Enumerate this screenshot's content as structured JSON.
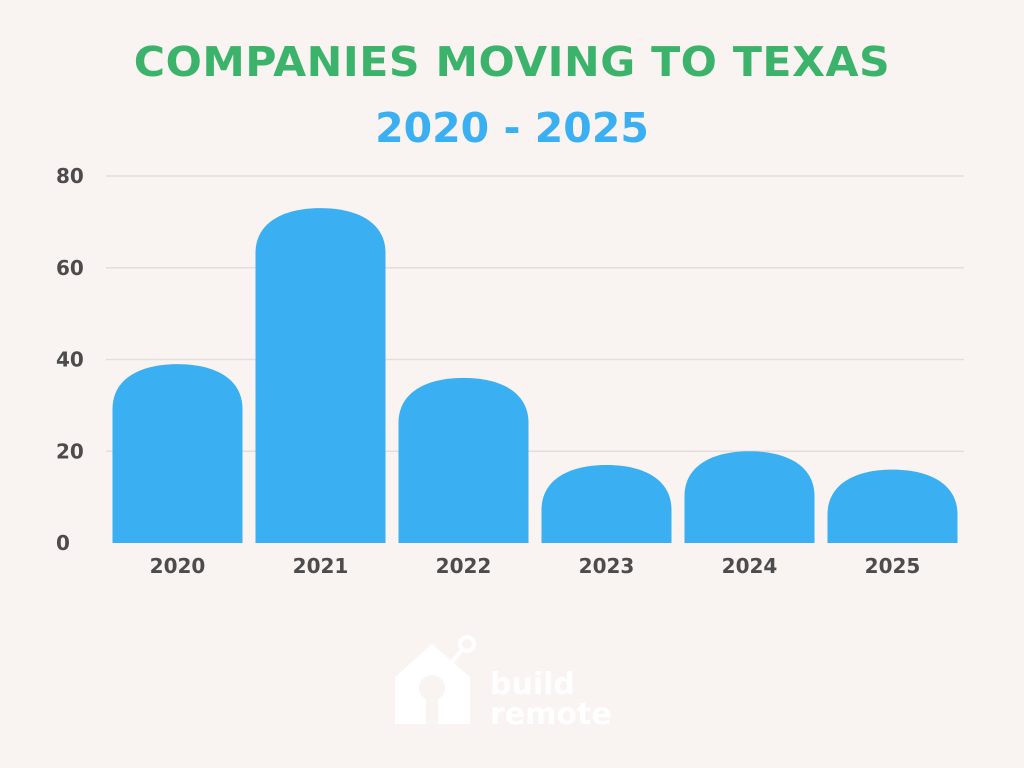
{
  "colors": {
    "background": "#f9f3f1",
    "title": "#3bb36b",
    "subtitle": "#3aaff2",
    "bar": "#3aaff2",
    "axis_text": "#4d4b4b",
    "watermark": "#ffffff"
  },
  "watermark": {
    "lines": [
      "build",
      "remote"
    ],
    "icon": "house-icon"
  },
  "chart_data": {
    "type": "bar",
    "title": "COMPANIES MOVING TO TEXAS",
    "subtitle": "2020 - 2025",
    "xlabel": "",
    "ylabel": "",
    "categories": [
      "2020",
      "2021",
      "2022",
      "2023",
      "2024",
      "2025"
    ],
    "values": [
      39,
      73,
      36,
      17,
      20,
      16
    ],
    "yticks": [
      0,
      20,
      40,
      60,
      80
    ],
    "ylim": [
      0,
      80
    ],
    "grid": true,
    "legend": "none"
  }
}
